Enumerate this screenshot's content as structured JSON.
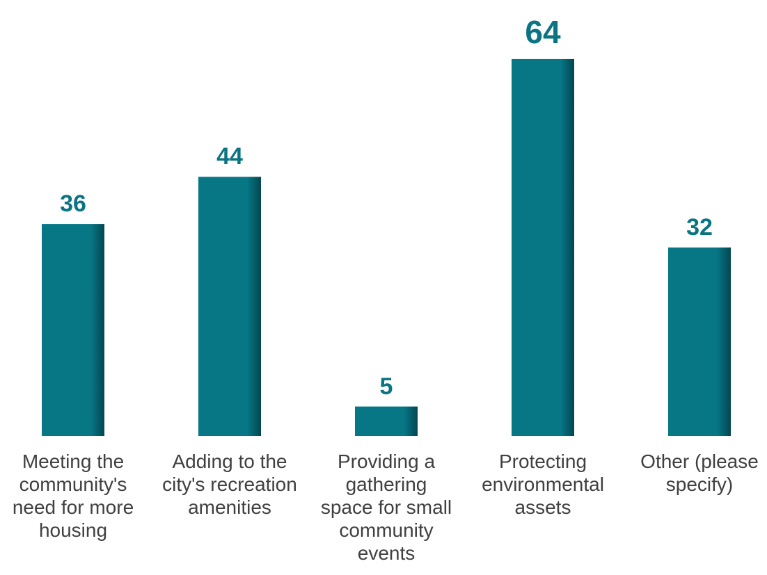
{
  "chart_data": {
    "type": "bar",
    "title": "",
    "xlabel": "",
    "ylabel": "",
    "categories": [
      "Meeting the\ncommunity's\nneed for more\nhousing",
      "Adding to the\ncity's recreation\namenities",
      "Providing a\ngathering\nspace for small\ncommunity\nevents",
      "Protecting\nenvironmental\nassets",
      "Other (please\nspecify)"
    ],
    "values": [
      36,
      44,
      5,
      64,
      32
    ],
    "ylim": [
      0,
      64
    ],
    "grid": false,
    "legend": "none",
    "bar_color": "#077786",
    "label_color": "#0a7482",
    "text_color": "#404040"
  }
}
